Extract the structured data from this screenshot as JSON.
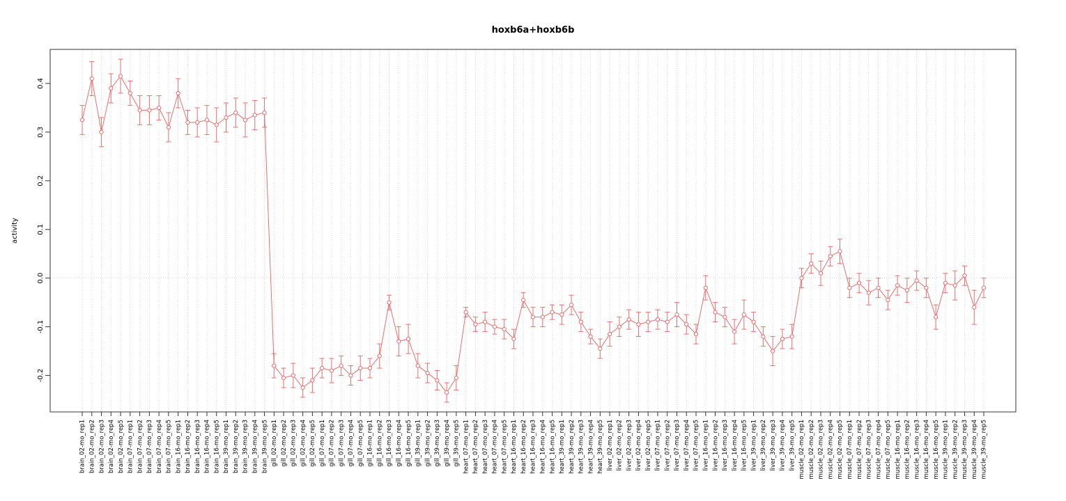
{
  "title": "hoxb6a+hoxb6b",
  "chart_data": {
    "type": "scatter",
    "title": "hoxb6a+hoxb6b",
    "xlabel": "",
    "ylabel": "activity",
    "ylim": [
      -0.275,
      0.47
    ],
    "yticks": [
      0.4,
      0.3,
      0.2,
      0.1,
      0.0,
      -0.1,
      -0.2
    ],
    "grid": "vertical-dotted-per-category plus dotted zero line",
    "legend": "none",
    "point_style": "open-circle with error bars, connected by line",
    "series_color": "#f26b6b",
    "categories": [
      "brain_02-mo_rep1",
      "brain_02-mo_rep2",
      "brain_02-mo_rep3",
      "brain_02-mo_rep4",
      "brain_02-mo_rep5",
      "brain_07-mo_rep1",
      "brain_07-mo_rep2",
      "brain_07-mo_rep3",
      "brain_07-mo_rep4",
      "brain_07-mo_rep5",
      "brain_16-mo_rep1",
      "brain_16-mo_rep2",
      "brain_16-mo_rep3",
      "brain_16-mo_rep4",
      "brain_16-mo_rep5",
      "brain_39-mo_rep1",
      "brain_39-mo_rep2",
      "brain_39-mo_rep3",
      "brain_39-mo_rep4",
      "brain_39-mo_rep5",
      "gill_02-mo_rep1",
      "gill_02-mo_rep2",
      "gill_02-mo_rep3",
      "gill_02-mo_rep4",
      "gill_02-mo_rep5",
      "gill_07-mo_rep1",
      "gill_07-mo_rep2",
      "gill_07-mo_rep3",
      "gill_07-mo_rep4",
      "gill_07-mo_rep5",
      "gill_16-mo_rep1",
      "gill_16-mo_rep2",
      "gill_16-mo_rep3",
      "gill_16-mo_rep4",
      "gill_16-mo_rep5",
      "gill_39-mo_rep1",
      "gill_39-mo_rep2",
      "gill_39-mo_rep3",
      "gill_39-mo_rep4",
      "gill_39-mo_rep5",
      "heart_07-mo_rep1",
      "heart_07-mo_rep2",
      "heart_07-mo_rep3",
      "heart_07-mo_rep4",
      "heart_07-mo_rep5",
      "heart_16-mo_rep1",
      "heart_16-mo_rep2",
      "heart_16-mo_rep3",
      "heart_16-mo_rep4",
      "heart_16-mo_rep5",
      "heart_39-mo_rep1",
      "heart_39-mo_rep2",
      "heart_39-mo_rep3",
      "heart_39-mo_rep4",
      "heart_39-mo_rep5",
      "liver_02-mo_rep1",
      "liver_02-mo_rep2",
      "liver_02-mo_rep3",
      "liver_02-mo_rep4",
      "liver_02-mo_rep5",
      "liver_07-mo_rep1",
      "liver_07-mo_rep2",
      "liver_07-mo_rep3",
      "liver_07-mo_rep4",
      "liver_07-mo_rep5",
      "liver_16-mo_rep1",
      "liver_16-mo_rep2",
      "liver_16-mo_rep3",
      "liver_16-mo_rep4",
      "liver_16-mo_rep5",
      "liver_39-mo_rep1",
      "liver_39-mo_rep2",
      "liver_39-mo_rep3",
      "liver_39-mo_rep4",
      "liver_39-mo_rep5",
      "muscle_02-mo_rep1",
      "muscle_02-mo_rep2",
      "muscle_02-mo_rep3",
      "muscle_02-mo_rep4",
      "muscle_02-mo_rep5",
      "muscle_07-mo_rep1",
      "muscle_07-mo_rep2",
      "muscle_07-mo_rep3",
      "muscle_07-mo_rep4",
      "muscle_07-mo_rep5",
      "muscle_16-mo_rep1",
      "muscle_16-mo_rep2",
      "muscle_16-mo_rep3",
      "muscle_16-mo_rep4",
      "muscle_16-mo_rep5",
      "muscle_39-mo_rep1",
      "muscle_39-mo_rep2",
      "muscle_39-mo_rep3",
      "muscle_39-mo_rep4",
      "muscle_39-mo_rep5"
    ],
    "values": [
      0.325,
      0.41,
      0.3,
      0.39,
      0.415,
      0.38,
      0.345,
      0.345,
      0.35,
      0.31,
      0.38,
      0.32,
      0.32,
      0.325,
      0.315,
      0.33,
      0.34,
      0.325,
      0.335,
      0.34,
      -0.18,
      -0.205,
      -0.2,
      -0.225,
      -0.21,
      -0.185,
      -0.19,
      -0.18,
      -0.2,
      -0.185,
      -0.185,
      -0.16,
      -0.05,
      -0.13,
      -0.125,
      -0.18,
      -0.195,
      -0.21,
      -0.235,
      -0.205,
      -0.07,
      -0.095,
      -0.09,
      -0.1,
      -0.105,
      -0.125,
      -0.045,
      -0.08,
      -0.08,
      -0.07,
      -0.075,
      -0.055,
      -0.09,
      -0.12,
      -0.145,
      -0.115,
      -0.1,
      -0.085,
      -0.095,
      -0.09,
      -0.085,
      -0.09,
      -0.075,
      -0.095,
      -0.115,
      -0.02,
      -0.07,
      -0.08,
      -0.11,
      -0.075,
      -0.09,
      -0.12,
      -0.15,
      -0.125,
      -0.12,
      0.0,
      0.03,
      0.01,
      0.045,
      0.055,
      -0.02,
      -0.01,
      -0.03,
      -0.02,
      -0.045,
      -0.015,
      -0.025,
      -0.005,
      -0.02,
      -0.08,
      -0.01,
      -0.015,
      0.005,
      -0.06,
      -0.02
    ],
    "errors": [
      0.03,
      0.035,
      0.03,
      0.03,
      0.035,
      0.025,
      0.03,
      0.03,
      0.025,
      0.03,
      0.03,
      0.025,
      0.03,
      0.03,
      0.035,
      0.03,
      0.03,
      0.035,
      0.03,
      0.03,
      0.025,
      0.02,
      0.025,
      0.02,
      0.025,
      0.02,
      0.025,
      0.02,
      0.02,
      0.025,
      0.02,
      0.025,
      0.015,
      0.03,
      0.03,
      0.025,
      0.02,
      0.02,
      0.02,
      0.025,
      0.01,
      0.015,
      0.02,
      0.015,
      0.02,
      0.02,
      0.015,
      0.02,
      0.02,
      0.015,
      0.02,
      0.02,
      0.02,
      0.015,
      0.02,
      0.025,
      0.02,
      0.02,
      0.025,
      0.02,
      0.02,
      0.02,
      0.025,
      0.02,
      0.02,
      0.025,
      0.02,
      0.02,
      0.025,
      0.03,
      0.02,
      0.02,
      0.03,
      0.02,
      0.025,
      0.02,
      0.02,
      0.025,
      0.02,
      0.025,
      0.02,
      0.02,
      0.025,
      0.02,
      0.02,
      0.02,
      0.025,
      0.02,
      0.02,
      0.025,
      0.02,
      0.03,
      0.02,
      0.035,
      0.02
    ]
  }
}
